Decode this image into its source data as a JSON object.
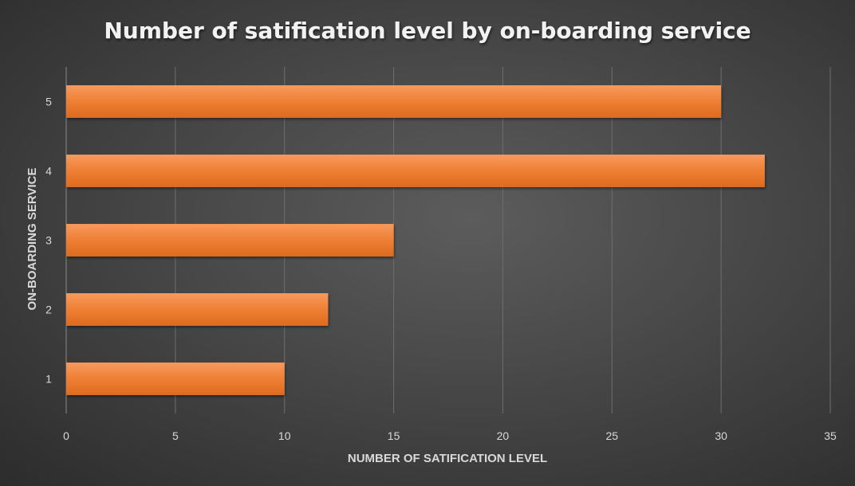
{
  "chart_data": {
    "type": "bar",
    "orientation": "horizontal",
    "title": "Number of satification level by on-boarding service",
    "xlabel": "NUMBER OF SATIFICATION LEVEL",
    "ylabel": "ON-BOARDING SERVICE",
    "categories": [
      "1",
      "2",
      "3",
      "4",
      "5"
    ],
    "values": [
      10,
      12,
      15,
      32,
      30
    ],
    "xlim": [
      0,
      35
    ],
    "xticks": [
      "0",
      "5",
      "10",
      "15",
      "20",
      "25",
      "30",
      "35"
    ],
    "grid": true,
    "legend": "none",
    "bar_color": "#ED7D31"
  }
}
